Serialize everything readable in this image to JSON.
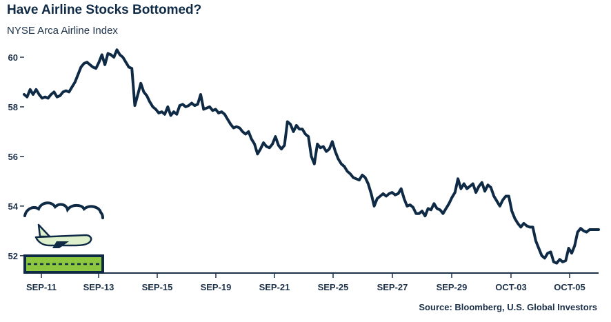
{
  "header": {
    "title": "Have Airline Stocks Bottomed?",
    "subtitle": "NYSE Arca Airline Index"
  },
  "footer": {
    "source": "Source: Bloomberg, U.S. Global Investors"
  },
  "colors": {
    "line": "#0f2a45",
    "axis": "#1b3048",
    "runway_green": "#8dc63f"
  },
  "chart_data": {
    "type": "line",
    "title": "Have Airline Stocks Bottomed?",
    "subtitle": "NYSE Arca Airline Index",
    "xlabel": "",
    "ylabel": "",
    "ylim": [
      51.3,
      60.5
    ],
    "yticks": [
      52,
      54,
      56,
      58,
      60
    ],
    "xtick_labels": [
      "SEP-11",
      "SEP-13",
      "SEP-15",
      "SEP-19",
      "SEP-21",
      "SEP-25",
      "SEP-27",
      "SEP-29",
      "OCT-03",
      "OCT-05"
    ],
    "grid": false,
    "legend": "none",
    "series": [
      {
        "values": [
          58.5,
          58.4,
          58.7,
          58.5,
          58.7,
          58.5,
          58.35,
          58.4,
          58.35,
          58.5,
          58.6,
          58.4,
          58.45,
          58.6,
          58.65,
          58.6,
          58.8,
          59.0,
          59.3,
          59.6,
          59.75,
          59.8,
          59.7,
          59.6,
          59.55,
          59.8,
          60.1,
          59.7,
          60.15,
          60.1,
          60.0,
          60.3,
          60.1,
          60.0,
          59.8,
          59.6,
          59.55,
          58.05,
          58.5,
          58.95,
          58.6,
          58.45,
          58.2,
          58.0,
          57.9,
          57.75,
          57.8,
          57.7,
          58.0,
          57.65,
          57.8,
          57.7,
          58.05,
          58.1,
          58.0,
          58.05,
          58.15,
          58.05,
          58.1,
          58.5,
          57.9,
          57.95,
          58.0,
          57.85,
          57.9,
          57.75,
          57.8,
          57.7,
          57.5,
          57.3,
          57.15,
          57.2,
          57.15,
          57.0,
          56.9,
          57.0,
          56.7,
          56.5,
          56.1,
          56.3,
          56.55,
          56.4,
          56.35,
          56.5,
          56.8,
          56.45,
          56.3,
          56.45,
          57.4,
          57.3,
          57.0,
          57.25,
          57.1,
          57.1,
          56.9,
          56.8,
          56.0,
          55.7,
          56.5,
          56.35,
          56.4,
          56.2,
          56.3,
          56.6,
          56.2,
          55.9,
          55.7,
          55.6,
          55.4,
          55.3,
          55.15,
          55.1,
          55.05,
          55.25,
          55.15,
          54.9,
          54.5,
          54.0,
          54.3,
          54.4,
          54.5,
          54.4,
          54.5,
          54.55,
          54.45,
          54.5,
          54.7,
          54.3,
          54.0,
          54.05,
          53.95,
          53.7,
          53.7,
          53.8,
          53.6,
          53.9,
          53.85,
          54.1,
          53.9,
          53.85,
          53.7,
          53.9,
          54.1,
          54.35,
          54.55,
          55.1,
          54.7,
          54.9,
          54.7,
          54.8,
          54.9,
          54.55,
          54.8,
          54.95,
          54.6,
          54.85,
          54.75,
          54.4,
          54.2,
          54.0,
          54.25,
          54.4,
          54.4,
          53.8,
          53.5,
          53.3,
          53.15,
          53.3,
          53.2,
          53.15,
          53.15,
          52.6,
          52.3,
          52.0,
          51.9,
          52.1,
          52.15,
          51.75,
          51.7,
          51.85,
          51.75,
          51.8,
          52.3,
          52.1,
          52.4,
          52.95,
          53.1,
          53.0,
          52.95,
          53.05,
          53.05,
          53.05,
          53.05
        ]
      }
    ]
  }
}
